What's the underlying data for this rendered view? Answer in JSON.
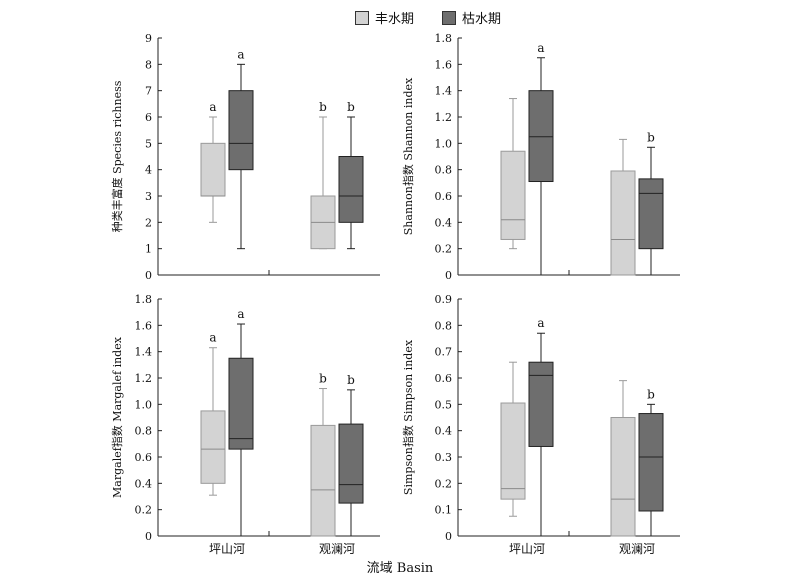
{
  "legend": {
    "wet": {
      "label": "丰水期",
      "color": "#d3d3d3"
    },
    "dry": {
      "label": "枯水期",
      "color": "#6e6e6e"
    }
  },
  "x_title": "流域 Basin",
  "chart_data": [
    {
      "type": "box",
      "ylabel": "种类丰富度 Species richness",
      "ylim": [
        0,
        9
      ],
      "yticks": [
        "0",
        "1",
        "2",
        "3",
        "4",
        "5",
        "6",
        "7",
        "8",
        "9"
      ],
      "categories": [
        "坪山河",
        "观澜河"
      ],
      "series": [
        {
          "name": "丰水期",
          "boxes": [
            {
              "min": 2,
              "q1": 3,
              "median": 3,
              "q3": 5,
              "max": 6,
              "letter": "a"
            },
            {
              "min": 1,
              "q1": 1,
              "median": 2,
              "q3": 3,
              "max": 6,
              "letter": "b"
            }
          ]
        },
        {
          "name": "枯水期",
          "boxes": [
            {
              "min": 1,
              "q1": 4,
              "median": 5,
              "q3": 7,
              "max": 8,
              "letter": "a"
            },
            {
              "min": 1,
              "q1": 2,
              "median": 3,
              "q3": 4.5,
              "max": 6,
              "letter": "b"
            }
          ]
        }
      ]
    },
    {
      "type": "box",
      "ylabel": "Shannon指数 Shannon index",
      "ylim": [
        0,
        1.8
      ],
      "yticks": [
        "0",
        "0.2",
        "0.4",
        "0.6",
        "0.8",
        "1.0",
        "1.2",
        "1.4",
        "1.6",
        "1.8"
      ],
      "categories": [
        "坪山河",
        "观澜河"
      ],
      "series": [
        {
          "name": "丰水期",
          "boxes": [
            {
              "min": 0.2,
              "q1": 0.27,
              "median": 0.42,
              "q3": 0.94,
              "max": 1.34,
              "letter": ""
            },
            {
              "min": 0,
              "q1": 0,
              "median": 0.27,
              "q3": 0.79,
              "max": 1.03,
              "letter": ""
            }
          ]
        },
        {
          "name": "枯水期",
          "boxes": [
            {
              "min": 0,
              "q1": 0.71,
              "median": 1.05,
              "q3": 1.4,
              "max": 1.65,
              "letter": "a"
            },
            {
              "min": 0,
              "q1": 0.2,
              "median": 0.62,
              "q3": 0.73,
              "max": 0.97,
              "letter": "b"
            }
          ]
        }
      ]
    },
    {
      "type": "box",
      "ylabel": "Margalef指数 Margalef index",
      "ylim": [
        0,
        1.8
      ],
      "yticks": [
        "0",
        "0.2",
        "0.4",
        "0.6",
        "0.8",
        "1.0",
        "1.2",
        "1.4",
        "1.6",
        "1.8"
      ],
      "categories": [
        "坪山河",
        "观澜河"
      ],
      "series": [
        {
          "name": "丰水期",
          "boxes": [
            {
              "min": 0.31,
              "q1": 0.4,
              "median": 0.66,
              "q3": 0.95,
              "max": 1.43,
              "letter": "a"
            },
            {
              "min": 0,
              "q1": 0,
              "median": 0.35,
              "q3": 0.84,
              "max": 1.12,
              "letter": "b"
            }
          ]
        },
        {
          "name": "枯水期",
          "boxes": [
            {
              "min": 0,
              "q1": 0.66,
              "median": 0.74,
              "q3": 1.35,
              "max": 1.61,
              "letter": "a"
            },
            {
              "min": 0,
              "q1": 0.25,
              "median": 0.39,
              "q3": 0.85,
              "max": 1.11,
              "letter": "b"
            }
          ]
        }
      ]
    },
    {
      "type": "box",
      "ylabel": "Simpson指数 Simpson index",
      "ylim": [
        0,
        0.9
      ],
      "yticks": [
        "0",
        "0.1",
        "0.2",
        "0.3",
        "0.4",
        "0.5",
        "0.6",
        "0.7",
        "0.8",
        "0.9"
      ],
      "categories": [
        "坪山河",
        "观澜河"
      ],
      "series": [
        {
          "name": "丰水期",
          "boxes": [
            {
              "min": 0.075,
              "q1": 0.14,
              "median": 0.18,
              "q3": 0.505,
              "max": 0.66,
              "letter": ""
            },
            {
              "min": 0,
              "q1": 0,
              "median": 0.14,
              "q3": 0.45,
              "max": 0.59,
              "letter": ""
            }
          ]
        },
        {
          "name": "枯水期",
          "boxes": [
            {
              "min": 0,
              "q1": 0.34,
              "median": 0.61,
              "q3": 0.66,
              "max": 0.77,
              "letter": "a"
            },
            {
              "min": 0,
              "q1": 0.095,
              "median": 0.3,
              "q3": 0.465,
              "max": 0.5,
              "letter": "b"
            }
          ]
        }
      ]
    }
  ]
}
